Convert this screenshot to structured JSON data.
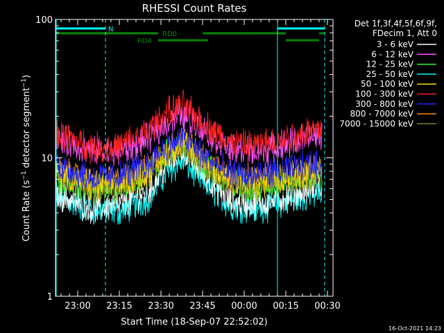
{
  "chart_data": {
    "type": "line",
    "title": "RHESSI Count Rates",
    "xlabel": "Start Time (18-Sep-07 22:52:02)",
    "ylabel": "Count Rate (s⁻¹ detector segment⁻¹)",
    "ylabel_prefix": "Count Rate (s",
    "ylabel_mid": " detector segment",
    "ylabel_sup": "−1",
    "ylabel_close": ")",
    "y_scale": "log",
    "ylim": [
      1,
      100
    ],
    "xlim": [
      "22:52",
      "00:32"
    ],
    "x_ticks": [
      "23:00",
      "23:15",
      "23:30",
      "23:45",
      "00:00",
      "00:15",
      "00:30"
    ],
    "y_ticks": [
      "1",
      "10",
      "100"
    ],
    "grid": false,
    "legend_position": "right",
    "legend_header": [
      "Det 1f,3f,4f,5f,6f,9f,",
      "FDecim 1, Att 0"
    ],
    "series": [
      {
        "name": "3 - 6 keV",
        "color": "#ffffff",
        "x": [
          "22:52",
          "23:05",
          "23:15",
          "23:25",
          "23:32",
          "23:38",
          "23:45",
          "23:55",
          "00:05",
          "00:15",
          "00:22",
          "00:28"
        ],
        "values": [
          5.5,
          4.3,
          4.6,
          5.6,
          8.8,
          11.5,
          7.8,
          4.8,
          4.6,
          5.2,
          5.8,
          6.2
        ]
      },
      {
        "name": "6 - 12 keV",
        "color": "#ff55ff",
        "x": [
          "22:52",
          "23:05",
          "23:15",
          "23:25",
          "23:32",
          "23:38",
          "23:45",
          "23:55",
          "00:05",
          "00:15",
          "00:22",
          "00:28"
        ],
        "values": [
          14.0,
          11.0,
          11.0,
          13.5,
          18.0,
          20.5,
          16.0,
          11.5,
          11.0,
          12.5,
          14.0,
          14.5
        ]
      },
      {
        "name": "12 - 25 keV",
        "color": "#33ff33",
        "x": [
          "22:52",
          "23:05",
          "23:15",
          "23:25",
          "23:32",
          "23:38",
          "23:45",
          "23:55",
          "00:05",
          "00:15",
          "00:22",
          "00:28"
        ],
        "values": [
          7.0,
          5.8,
          6.0,
          7.2,
          10.5,
          12.5,
          9.0,
          6.3,
          6.2,
          6.8,
          7.2,
          7.5
        ]
      },
      {
        "name": "25 - 50 keV",
        "color": "#00ffff",
        "x": [
          "22:52",
          "23:05",
          "23:15",
          "23:25",
          "23:32",
          "23:38",
          "23:45",
          "23:55",
          "00:05",
          "00:15",
          "00:22",
          "00:28"
        ],
        "values": [
          5.2,
          4.2,
          4.1,
          5.0,
          7.8,
          9.5,
          6.8,
          4.5,
          4.3,
          4.8,
          5.3,
          5.5
        ]
      },
      {
        "name": "50 - 100 keV",
        "color": "#ffd700",
        "x": [
          "22:52",
          "23:05",
          "23:15",
          "23:25",
          "23:32",
          "23:38",
          "23:45",
          "23:55",
          "00:05",
          "00:15",
          "00:22",
          "00:28"
        ],
        "values": [
          8.0,
          6.3,
          6.6,
          7.8,
          11.0,
          13.0,
          9.6,
          6.8,
          6.6,
          7.3,
          7.8,
          8.0
        ]
      },
      {
        "name": "100 - 300 keV",
        "color": "#ff2020",
        "x": [
          "22:52",
          "23:05",
          "23:15",
          "23:25",
          "23:32",
          "23:38",
          "23:45",
          "23:55",
          "00:05",
          "00:15",
          "00:22",
          "00:28"
        ],
        "values": [
          15.0,
          12.0,
          12.0,
          15.5,
          21.0,
          24.0,
          18.0,
          12.8,
          12.3,
          13.8,
          15.5,
          16.0
        ]
      },
      {
        "name": "300 - 800 keV",
        "color": "#2222ff",
        "x": [
          "22:52",
          "23:05",
          "23:15",
          "23:25",
          "23:32",
          "23:38",
          "23:45",
          "23:55",
          "00:05",
          "00:15",
          "00:22",
          "00:28"
        ],
        "values": [
          9.0,
          7.2,
          7.4,
          8.8,
          12.0,
          14.0,
          10.5,
          7.6,
          7.4,
          8.2,
          8.8,
          9.0
        ]
      },
      {
        "name": "800 - 7000 keV",
        "color": "#ff8c00",
        "x": [
          "22:52",
          "23:05",
          "23:15",
          "23:25",
          "23:32",
          "23:38",
          "23:45",
          "23:55",
          "00:05",
          "00:15",
          "00:22",
          "00:28"
        ],
        "values": [
          8.3,
          6.6,
          6.9,
          8.1,
          11.4,
          13.3,
          9.9,
          7.1,
          6.9,
          7.6,
          8.1,
          8.3
        ]
      },
      {
        "name": "7000 - 15000 keV",
        "color": "#6b8e23",
        "x": [
          "22:52",
          "23:05",
          "23:15",
          "23:25",
          "23:32",
          "23:38",
          "23:45",
          "23:55",
          "00:05",
          "00:15",
          "00:22",
          "00:28"
        ],
        "values": [
          7.6,
          6.0,
          6.3,
          7.5,
          10.8,
          12.7,
          9.3,
          6.5,
          6.3,
          7.0,
          7.5,
          7.7
        ]
      }
    ],
    "flag_bars": [
      {
        "name": "N",
        "color": "#00ffff",
        "segments": [
          [
            "22:52",
            "23:10"
          ],
          [
            "00:12",
            "00:29"
          ]
        ]
      },
      {
        "name": "RD0",
        "color": "#008800",
        "segments": [
          [
            "22:52",
            "23:29"
          ],
          [
            "23:45",
            "00:15"
          ],
          [
            "00:27",
            "00:29"
          ]
        ]
      },
      {
        "name": "RD4",
        "color": "#008800",
        "segments": [
          [
            "23:29",
            "23:47"
          ],
          [
            "00:15",
            "00:27"
          ]
        ]
      }
    ],
    "vertical_markers": [
      {
        "x": "22:52",
        "style": "solid"
      },
      {
        "x": "23:10",
        "style": "dashed"
      },
      {
        "x": "00:12",
        "style": "solid"
      },
      {
        "x": "00:29",
        "style": "dashed"
      }
    ],
    "footer_date": "16-Oct-2021 14:23"
  }
}
